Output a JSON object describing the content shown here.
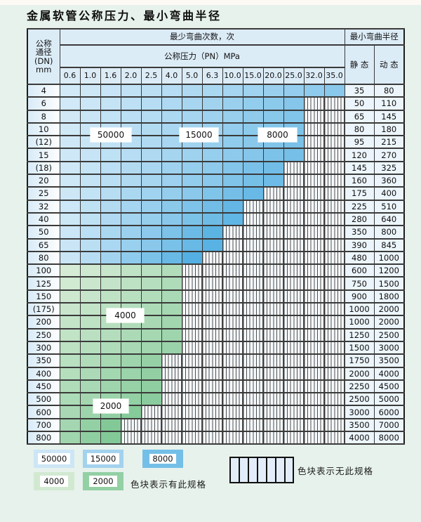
{
  "title": "金属软管公称压力、最小弯曲半径",
  "colors": {
    "page_bg": "#e7f2ec",
    "blue_cell_light": "#e0f0fa",
    "blue_cell_dark": "#54b0e2",
    "green_cell_light": "#e7f3e3",
    "green_cell_dark": "#82c997",
    "hatch_line": "#4d4d4d",
    "header_bg": "#dcecf7"
  },
  "table": {
    "header": {
      "dn_lines": [
        "公称",
        "通径",
        "(DN)",
        "mm"
      ],
      "bend_cycles": "最少弯曲次数，次",
      "pressure": "公称压力（PN）MPa",
      "bend_radius": "最小弯曲半径",
      "static": "静 态",
      "dynamic": "动 态",
      "pressure_cols": [
        "0.6",
        "1.0",
        "1.6",
        "2.0",
        "2.5",
        "4.0",
        "5.0",
        "6.3",
        "10.0",
        "15.0",
        "20.0",
        "25.0",
        "32.0",
        "35.0"
      ]
    },
    "rows": [
      {
        "dn": "4",
        "region": "blue",
        "colored": 14,
        "static": "35",
        "dynamic": "80"
      },
      {
        "dn": "6",
        "region": "blue",
        "colored": 12,
        "static": "50",
        "dynamic": "110"
      },
      {
        "dn": "8",
        "region": "blue",
        "colored": 12,
        "static": "65",
        "dynamic": "145"
      },
      {
        "dn": "10",
        "region": "blue",
        "colored": 12,
        "static": "80",
        "dynamic": "180"
      },
      {
        "dn": "(12)",
        "region": "blue",
        "colored": 12,
        "static": "95",
        "dynamic": "215"
      },
      {
        "dn": "15",
        "region": "blue",
        "colored": 12,
        "static": "120",
        "dynamic": "270"
      },
      {
        "dn": "(18)",
        "region": "blue",
        "colored": 11,
        "static": "145",
        "dynamic": "325"
      },
      {
        "dn": "20",
        "region": "blue",
        "colored": 11,
        "static": "160",
        "dynamic": "360"
      },
      {
        "dn": "25",
        "region": "blue",
        "colored": 10,
        "static": "175",
        "dynamic": "400"
      },
      {
        "dn": "32",
        "region": "blue",
        "colored": 9,
        "static": "225",
        "dynamic": "510"
      },
      {
        "dn": "40",
        "region": "blue",
        "colored": 9,
        "static": "280",
        "dynamic": "640"
      },
      {
        "dn": "50",
        "region": "blue",
        "colored": 8,
        "static": "350",
        "dynamic": "800"
      },
      {
        "dn": "65",
        "region": "blue",
        "colored": 8,
        "static": "390",
        "dynamic": "845"
      },
      {
        "dn": "80",
        "region": "blue",
        "colored": 7,
        "static": "480",
        "dynamic": "1000"
      },
      {
        "dn": "100",
        "region": "green",
        "colored": 6,
        "static": "600",
        "dynamic": "1200"
      },
      {
        "dn": "125",
        "region": "green",
        "colored": 6,
        "static": "750",
        "dynamic": "1500"
      },
      {
        "dn": "150",
        "region": "green",
        "colored": 6,
        "static": "900",
        "dynamic": "1800"
      },
      {
        "dn": "(175)",
        "region": "green",
        "colored": 6,
        "static": "1000",
        "dynamic": "2000"
      },
      {
        "dn": "200",
        "region": "green",
        "colored": 6,
        "static": "1000",
        "dynamic": "2000"
      },
      {
        "dn": "250",
        "region": "green",
        "colored": 6,
        "static": "1250",
        "dynamic": "2500"
      },
      {
        "dn": "300",
        "region": "green",
        "colored": 6,
        "static": "1500",
        "dynamic": "3000"
      },
      {
        "dn": "350",
        "region": "green",
        "colored": 5,
        "static": "1750",
        "dynamic": "3500"
      },
      {
        "dn": "400",
        "region": "green",
        "colored": 5,
        "static": "2000",
        "dynamic": "4000"
      },
      {
        "dn": "450",
        "region": "green",
        "colored": 5,
        "static": "2250",
        "dynamic": "4500"
      },
      {
        "dn": "500",
        "region": "green",
        "colored": 5,
        "static": "2500",
        "dynamic": "5000"
      },
      {
        "dn": "600",
        "region": "green",
        "colored": 4,
        "static": "3000",
        "dynamic": "6000"
      },
      {
        "dn": "700",
        "region": "green",
        "colored": 3,
        "static": "3500",
        "dynamic": "7000"
      },
      {
        "dn": "800",
        "region": "green",
        "colored": 3,
        "static": "4000",
        "dynamic": "8000"
      }
    ]
  },
  "overlays": [
    {
      "label": "50000"
    },
    {
      "label": "15000"
    },
    {
      "label": "8000"
    },
    {
      "label": "4000"
    },
    {
      "label": "2000"
    }
  ],
  "legend": {
    "blocks": [
      {
        "label": "50000",
        "color": "#cde6f6"
      },
      {
        "label": "15000",
        "color": "#a3d2ee"
      },
      {
        "label": "8000",
        "color": "#74bfe8"
      },
      {
        "label": "4000",
        "color": "#d2e9d1"
      },
      {
        "label": "2000",
        "color": "#93d0a4"
      }
    ],
    "has_spec_text": "色块表示有此规格",
    "no_spec_text": "色块表示无此规格"
  }
}
